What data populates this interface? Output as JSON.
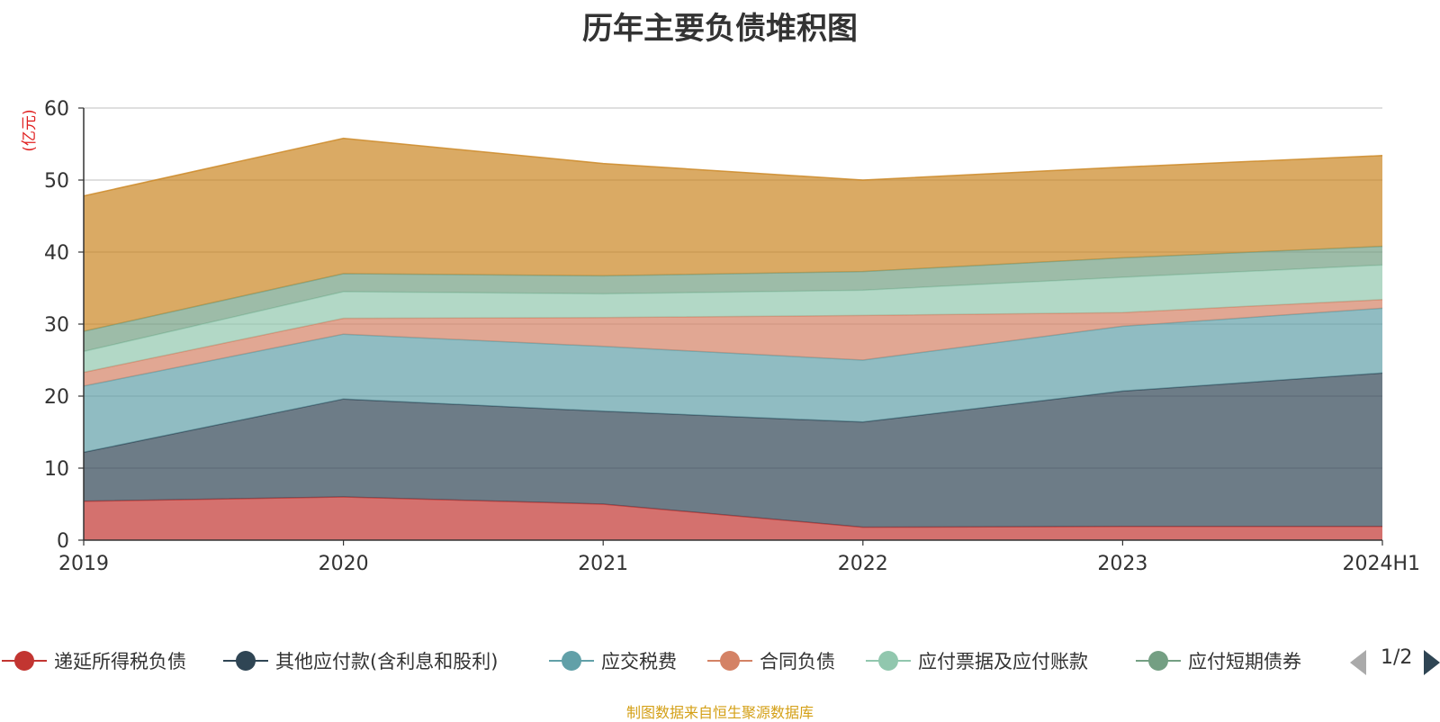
{
  "chart_data": {
    "type": "area",
    "stacked": true,
    "title": "历年主要负债堆积图",
    "ylabel": "(亿元)",
    "xlabel": "",
    "ylim": [
      0,
      60
    ],
    "yticks": [
      "0",
      "10",
      "20",
      "30",
      "40",
      "50",
      "60"
    ],
    "categories": [
      "2019",
      "2020",
      "2021",
      "2022",
      "2023",
      "2024H1"
    ],
    "series": [
      {
        "name": "递延所得税负债",
        "color": "#c23531",
        "values": [
          5.4,
          6.0,
          5.0,
          1.8,
          1.9,
          1.9
        ]
      },
      {
        "name": "其他应付款(含利息和股利)",
        "color": "#2f4554",
        "values": [
          6.8,
          13.6,
          12.9,
          14.6,
          18.8,
          21.3
        ]
      },
      {
        "name": "应交税费",
        "color": "#61a0a8",
        "values": [
          9.2,
          9.0,
          9.0,
          8.6,
          9.0,
          9.0
        ]
      },
      {
        "name": "合同负债",
        "color": "#d48265",
        "values": [
          1.9,
          2.2,
          4.0,
          6.2,
          1.9,
          1.2
        ]
      },
      {
        "name": "应付票据及应付账款",
        "color": "#91c7ae",
        "values": [
          2.9,
          3.7,
          3.3,
          3.5,
          4.9,
          4.8
        ]
      },
      {
        "name": "应付短期债券",
        "color": "#749f83",
        "values": [
          2.8,
          2.5,
          2.5,
          2.6,
          2.7,
          2.6
        ]
      },
      {
        "name": "",
        "color": "#ca8622",
        "values": [
          18.8,
          18.8,
          15.6,
          12.7,
          12.6,
          12.6
        ]
      }
    ],
    "legend_placement": "bottom"
  },
  "legend": {
    "items": [
      {
        "label": "递延所得税负债",
        "color": "#c23531"
      },
      {
        "label": "其他应付款(含利息和股利)",
        "color": "#2f4554"
      },
      {
        "label": "应交税费",
        "color": "#61a0a8"
      },
      {
        "label": "合同负债",
        "color": "#d48265"
      },
      {
        "label": "应付票据及应付账款",
        "color": "#91c7ae"
      },
      {
        "label": "应付短期债券",
        "color": "#749f83"
      }
    ],
    "page_text": "1/2"
  },
  "source_note": "制图数据来自恒生聚源数据库"
}
